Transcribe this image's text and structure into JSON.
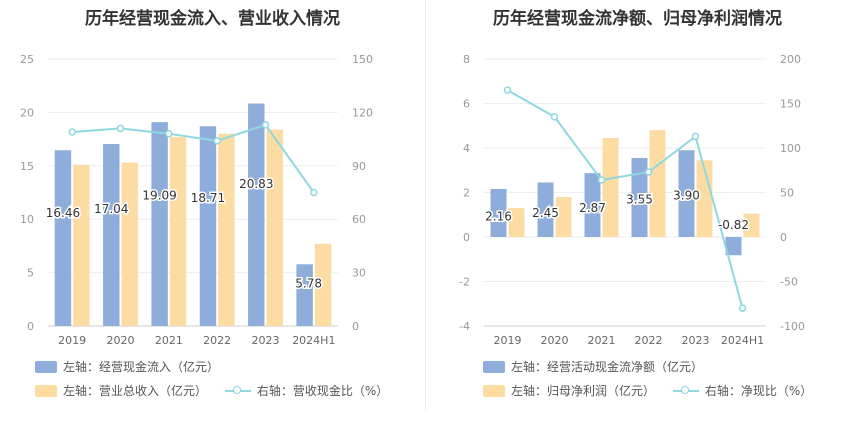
{
  "colors": {
    "bar_primary": "#8eaddb",
    "bar_secondary": "#fddca4",
    "line": "#8fd8e0",
    "axis_text": "#999999",
    "grid": "#eeeeee",
    "label": "#333333"
  },
  "chart_data": [
    {
      "type": "bar",
      "title": "历年经营现金流入、营业收入情况",
      "categories": [
        "2019",
        "2020",
        "2021",
        "2022",
        "2023",
        "2024H1"
      ],
      "ylim_left": [
        0,
        25
      ],
      "yticks_left": [
        0,
        5,
        10,
        15,
        20,
        25
      ],
      "ylim_right": [
        0,
        150
      ],
      "yticks_right": [
        0,
        30,
        60,
        90,
        120,
        150
      ],
      "series": [
        {
          "name": "左轴：经营现金流入（亿元）",
          "axis": "left",
          "kind": "bar",
          "values": [
            16.46,
            17.04,
            19.09,
            18.71,
            20.83,
            5.78
          ],
          "labels": [
            "16.46",
            "17.04",
            "19.09",
            "18.71",
            "20.83",
            "5.78"
          ]
        },
        {
          "name": "左轴：营业总收入（亿元）",
          "axis": "left",
          "kind": "bar",
          "values": [
            15.1,
            15.3,
            17.7,
            18.0,
            18.4,
            7.7
          ]
        },
        {
          "name": "右轴：营收现金比（%）",
          "axis": "right",
          "kind": "line",
          "values": [
            109,
            111,
            108,
            104,
            113,
            75
          ]
        }
      ],
      "grid": true,
      "legend": "bottom"
    },
    {
      "type": "bar",
      "title": "历年经营现金流净额、归母净利润情况",
      "categories": [
        "2019",
        "2020",
        "2021",
        "2022",
        "2023",
        "2024H1"
      ],
      "ylim_left": [
        -4,
        8
      ],
      "yticks_left": [
        -4,
        -2,
        0,
        2,
        4,
        6,
        8
      ],
      "ylim_right": [
        -100,
        200
      ],
      "yticks_right": [
        -100,
        -50,
        0,
        50,
        100,
        150,
        200
      ],
      "series": [
        {
          "name": "左轴：经营活动现金流净额（亿元）",
          "axis": "left",
          "kind": "bar",
          "values": [
            2.16,
            2.45,
            2.87,
            3.55,
            3.9,
            -0.82
          ],
          "labels": [
            "2.16",
            "2.45",
            "2.87",
            "3.55",
            "3.90",
            "-0.82"
          ]
        },
        {
          "name": "左轴：归母净利润（亿元）",
          "axis": "left",
          "kind": "bar",
          "values": [
            1.3,
            1.8,
            4.45,
            4.8,
            3.45,
            1.05
          ]
        },
        {
          "name": "右轴：净现比（%）",
          "axis": "right",
          "kind": "line",
          "values": [
            165,
            135,
            64,
            73,
            113,
            -80
          ]
        }
      ],
      "grid": true,
      "legend": "bottom"
    }
  ]
}
